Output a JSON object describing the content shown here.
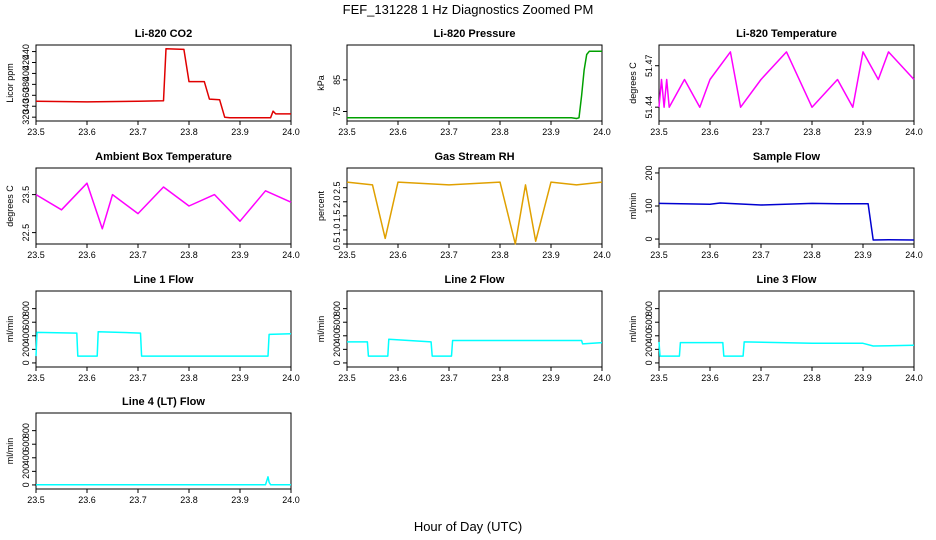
{
  "title": "FEF_131228  1 Hz Diagnostics Zoomed PM",
  "xlabel": "Hour of Day (UTC)",
  "chart_data": [
    {
      "type": "line",
      "title": "Li-820 CO2",
      "ylabel": "Licor ppm",
      "color": "#e00000",
      "xlim": [
        23.5,
        24.0
      ],
      "ylim": [
        313,
        452
      ],
      "yticks": [
        "320",
        "340",
        "360",
        "380",
        "400",
        "420",
        "440"
      ],
      "xticks": [
        "23.5",
        "23.6",
        "23.7",
        "23.8",
        "23.9",
        "24.0"
      ],
      "x": [
        23.5,
        23.6,
        23.7,
        23.75,
        23.755,
        23.79,
        23.8,
        23.83,
        23.84,
        23.86,
        23.87,
        23.88,
        23.89,
        23.93,
        23.96,
        23.965,
        23.97,
        23.99,
        24.0
      ],
      "y": [
        349,
        348,
        349,
        350,
        445,
        444,
        385,
        385,
        353,
        352,
        320,
        319,
        319,
        319,
        319,
        331,
        326,
        326,
        326
      ]
    },
    {
      "type": "line",
      "title": "Li-820 Pressure",
      "ylabel": "kPa",
      "color": "#00a000",
      "xlim": [
        23.5,
        24.0
      ],
      "ylim": [
        72,
        96
      ],
      "yticks": [
        "75",
        "85"
      ],
      "xticks": [
        "23.5",
        "23.6",
        "23.7",
        "23.8",
        "23.9",
        "24.0"
      ],
      "x": [
        23.5,
        23.7,
        23.9,
        23.93,
        23.94,
        23.95,
        23.955,
        23.96,
        23.965,
        23.97,
        23.975,
        24.0
      ],
      "y": [
        73,
        73,
        73,
        73,
        73,
        72.8,
        73,
        80,
        88,
        93,
        94,
        94
      ]
    },
    {
      "type": "line",
      "title": "Li-820 Temperature",
      "ylabel": "degrees C",
      "color": "#ff00ff",
      "xlim": [
        23.5,
        24.0
      ],
      "ylim": [
        51.43,
        51.485
      ],
      "yticks": [
        "51.44",
        "51.47"
      ],
      "xticks": [
        "23.5",
        "23.6",
        "23.7",
        "23.8",
        "23.9",
        "24.0"
      ],
      "x": [
        23.5,
        23.505,
        23.51,
        23.515,
        23.52,
        23.55,
        23.58,
        23.6,
        23.64,
        23.66,
        23.7,
        23.75,
        23.8,
        23.85,
        23.88,
        23.9,
        23.93,
        23.95,
        24.0
      ],
      "y": [
        51.44,
        51.46,
        51.44,
        51.46,
        51.44,
        51.46,
        51.44,
        51.46,
        51.48,
        51.44,
        51.46,
        51.48,
        51.44,
        51.46,
        51.44,
        51.48,
        51.46,
        51.48,
        51.46
      ]
    },
    {
      "type": "line",
      "title": "Ambient Box Temperature",
      "ylabel": "degrees C",
      "color": "#ff00ff",
      "xlim": [
        23.5,
        24.0
      ],
      "ylim": [
        22.2,
        24.2
      ],
      "yticks": [
        "22.5",
        "23.5"
      ],
      "xticks": [
        "23.5",
        "23.6",
        "23.7",
        "23.8",
        "23.9",
        "24.0"
      ],
      "x": [
        23.5,
        23.55,
        23.6,
        23.63,
        23.65,
        23.7,
        23.75,
        23.8,
        23.85,
        23.9,
        23.95,
        24.0
      ],
      "y": [
        23.5,
        23.1,
        23.8,
        22.6,
        23.5,
        23.0,
        23.7,
        23.2,
        23.5,
        22.8,
        23.6,
        23.3
      ]
    },
    {
      "type": "line",
      "title": "Gas Stream RH",
      "ylabel": "percent",
      "color": "#e0a000",
      "xlim": [
        23.5,
        24.0
      ],
      "ylim": [
        0.5,
        3.2
      ],
      "yticks": [
        "0.5",
        "1.0",
        "1.5",
        "2.0",
        "2.5"
      ],
      "xticks": [
        "23.5",
        "23.6",
        "23.7",
        "23.8",
        "23.9",
        "24.0"
      ],
      "x": [
        23.5,
        23.55,
        23.575,
        23.6,
        23.7,
        23.8,
        23.83,
        23.85,
        23.87,
        23.9,
        23.95,
        24.0
      ],
      "y": [
        2.7,
        2.6,
        0.7,
        2.7,
        2.6,
        2.7,
        0.5,
        2.6,
        0.6,
        2.7,
        2.6,
        2.7
      ]
    },
    {
      "type": "line",
      "title": "Sample Flow",
      "ylabel": "ml/min",
      "color": "#0000d0",
      "xlim": [
        23.5,
        24.0
      ],
      "ylim": [
        -15,
        215
      ],
      "yticks": [
        "0",
        "100",
        "200"
      ],
      "xticks": [
        "23.5",
        "23.6",
        "23.7",
        "23.8",
        "23.9",
        "24.0"
      ],
      "x": [
        23.5,
        23.6,
        23.62,
        23.7,
        23.8,
        23.85,
        23.91,
        23.92,
        23.95,
        24.0
      ],
      "y": [
        108,
        105,
        109,
        103,
        108,
        107,
        107,
        -3,
        -2,
        -3
      ]
    },
    {
      "type": "line",
      "title": "Line 1 Flow",
      "ylabel": "ml/min",
      "color": "#00ffff",
      "xlim": [
        23.5,
        24.0
      ],
      "ylim": [
        -60,
        1060
      ],
      "yticks": [
        "0",
        "200",
        "400",
        "600",
        "800"
      ],
      "xticks": [
        "23.5",
        "23.6",
        "23.7",
        "23.8",
        "23.9",
        "24.0"
      ],
      "x": [
        23.5,
        23.502,
        23.58,
        23.582,
        23.62,
        23.622,
        23.705,
        23.707,
        23.955,
        23.957,
        24.0
      ],
      "y": [
        100,
        450,
        440,
        100,
        100,
        460,
        440,
        100,
        100,
        420,
        430
      ]
    },
    {
      "type": "line",
      "title": "Line 2 Flow",
      "ylabel": "ml/min",
      "color": "#00ffff",
      "xlim": [
        23.5,
        24.0
      ],
      "ylim": [
        -60,
        1060
      ],
      "yticks": [
        "0",
        "200",
        "400",
        "600",
        "800"
      ],
      "xticks": [
        "23.5",
        "23.6",
        "23.7",
        "23.8",
        "23.9",
        "24.0"
      ],
      "x": [
        23.5,
        23.54,
        23.542,
        23.58,
        23.582,
        23.665,
        23.667,
        23.705,
        23.707,
        23.96,
        23.962,
        24.0
      ],
      "y": [
        310,
        310,
        100,
        100,
        350,
        310,
        100,
        100,
        330,
        330,
        280,
        300
      ]
    },
    {
      "type": "line",
      "title": "Line 3 Flow",
      "ylabel": "ml/min",
      "color": "#00ffff",
      "xlim": [
        23.5,
        24.0
      ],
      "ylim": [
        -60,
        1060
      ],
      "yticks": [
        "0",
        "200",
        "400",
        "600",
        "800"
      ],
      "xticks": [
        "23.5",
        "23.6",
        "23.7",
        "23.8",
        "23.9",
        "24.0"
      ],
      "x": [
        23.5,
        23.502,
        23.54,
        23.542,
        23.625,
        23.627,
        23.665,
        23.667,
        23.8,
        23.9,
        23.92,
        24.0
      ],
      "y": [
        310,
        100,
        100,
        300,
        300,
        100,
        100,
        310,
        290,
        290,
        250,
        260
      ]
    },
    {
      "type": "line",
      "title": "Line 4 (LT) Flow",
      "ylabel": "ml/min",
      "color": "#00ffff",
      "xlim": [
        23.5,
        24.0
      ],
      "ylim": [
        -60,
        1060
      ],
      "yticks": [
        "0",
        "200",
        "400",
        "600",
        "800"
      ],
      "xticks": [
        "23.5",
        "23.6",
        "23.7",
        "23.8",
        "23.9",
        "24.0"
      ],
      "x": [
        23.5,
        23.7,
        23.95,
        23.955,
        23.957,
        23.96,
        24.0
      ],
      "y": [
        2,
        2,
        2,
        120,
        40,
        2,
        2
      ]
    }
  ]
}
